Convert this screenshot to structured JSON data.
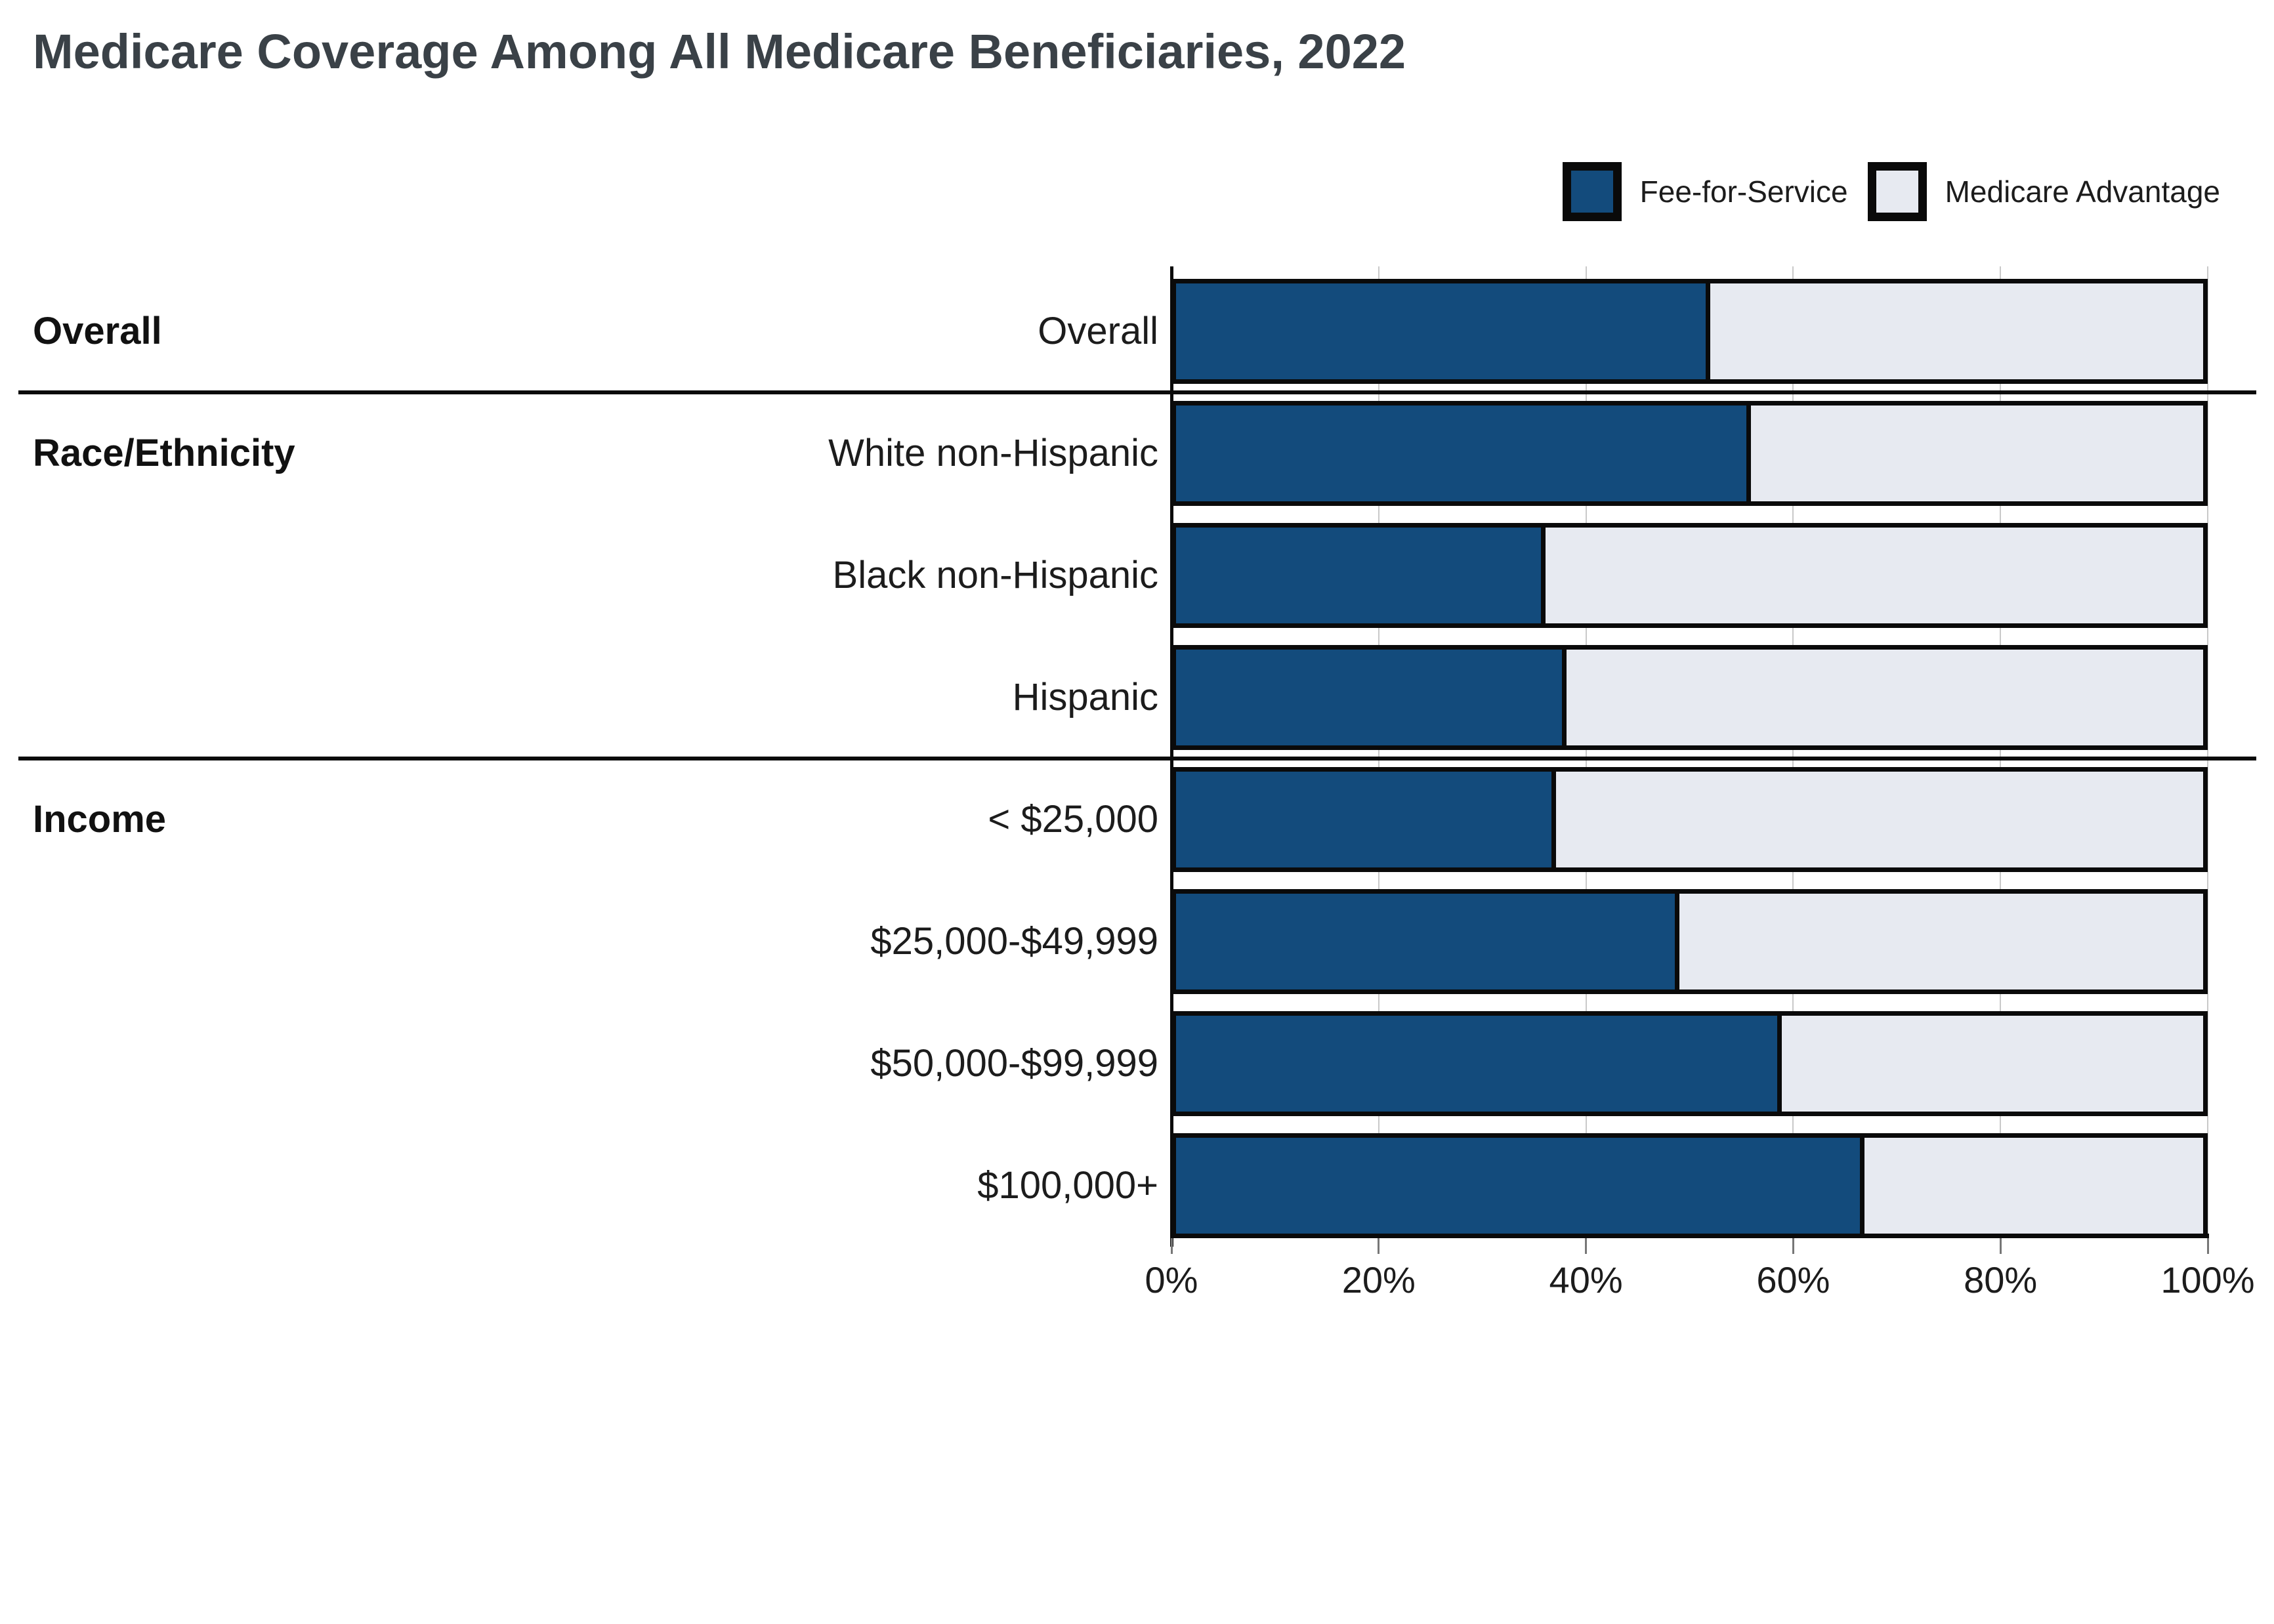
{
  "title": "Medicare Coverage Among All Medicare Beneficiaries, 2022",
  "colors": {
    "fee_for_service": "#134B7C",
    "medicare_advantage": "#E7EAF1",
    "bar_border": "#0A0A0A",
    "gridline": "#C9C9C9",
    "title_text": "#3A4147"
  },
  "legend": {
    "items": [
      {
        "label": "Fee-for-Service",
        "color": "#134B7C"
      },
      {
        "label": "Medicare Advantage",
        "color": "#E7EAF1"
      }
    ]
  },
  "chart_data": {
    "type": "bar",
    "stacked": true,
    "orientation": "horizontal",
    "title": "Medicare Coverage Among All Medicare Beneficiaries, 2022",
    "xlabel": "",
    "ylabel": "",
    "xlim": [
      0,
      100
    ],
    "unit": "%",
    "grid": true,
    "legend_position": "top-right",
    "x_ticks": [
      "0%",
      "20%",
      "40%",
      "60%",
      "80%",
      "100%"
    ],
    "x_tick_values": [
      0,
      20,
      40,
      60,
      80,
      100
    ],
    "categories": [
      "Overall",
      "White non-Hispanic",
      "Black non-Hispanic",
      "Hispanic",
      "< $25,000",
      "$25,000-$49,999",
      "$50,000-$99,999",
      "$100,000+"
    ],
    "groups": [
      {
        "label": "Overall",
        "start": 0,
        "count": 1
      },
      {
        "label": "Race/Ethnicity",
        "start": 1,
        "count": 3
      },
      {
        "label": "Income",
        "start": 4,
        "count": 4
      }
    ],
    "series": [
      {
        "name": "Fee-for-Service",
        "color": "#134B7C",
        "values": [
          52,
          56,
          36,
          38,
          37,
          49,
          59,
          67
        ]
      },
      {
        "name": "Medicare Advantage",
        "color": "#E7EAF1",
        "values": [
          48,
          44,
          64,
          62,
          63,
          51,
          41,
          33
        ]
      }
    ]
  }
}
